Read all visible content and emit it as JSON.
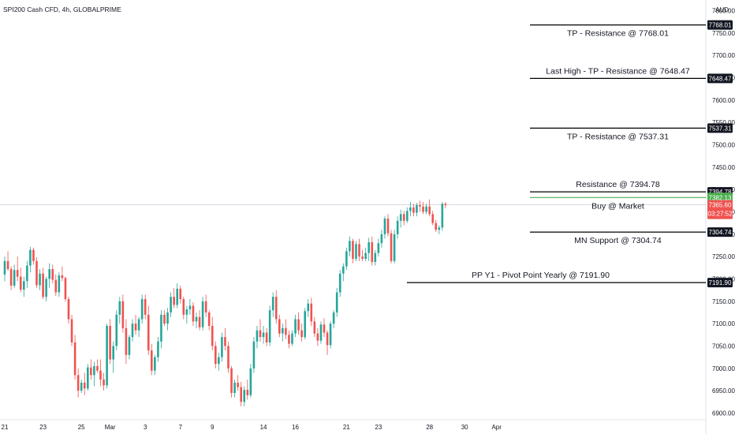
{
  "chart_data": {
    "type": "candlestick",
    "title": "SPI200 Cash CFD, 4h, GLOBALPRIME",
    "currency": "AUD",
    "ylim": [
      6885,
      7815
    ],
    "y_ticks": [
      7800,
      7750,
      7700,
      7650,
      7600,
      7550,
      7500,
      7450,
      7400,
      7350,
      7300,
      7250,
      7200,
      7150,
      7100,
      7050,
      7000,
      6950,
      6900
    ],
    "y_tick_labels": [
      "7800.00",
      "7750.00",
      "7700.00",
      "7650.00",
      "7600.00",
      "7550.00",
      "7500.00",
      "7450.00",
      "7400.00",
      "7350.00",
      "7300.00",
      "7250.00",
      "7200.00",
      "7150.00",
      "7100.00",
      "7050.00",
      "7000.00",
      "6950.00",
      "6900.00"
    ],
    "x_ticks": [
      {
        "label": "21",
        "index": 0
      },
      {
        "label": "23",
        "index": 12
      },
      {
        "label": "25",
        "index": 24
      },
      {
        "label": "Mar",
        "index": 33
      },
      {
        "label": "3",
        "index": 44
      },
      {
        "label": "7",
        "index": 55
      },
      {
        "label": "9",
        "index": 65
      },
      {
        "label": "14",
        "index": 81
      },
      {
        "label": "16",
        "index": 91
      },
      {
        "label": "21",
        "index": 107
      },
      {
        "label": "23",
        "index": 117
      },
      {
        "label": "28",
        "index": 133
      },
      {
        "label": "30",
        "index": 144
      },
      {
        "label": "Apr",
        "index": 154
      },
      {
        "label": "",
        "index": 166
      }
    ],
    "candles": [
      [
        7210,
        7250,
        7195,
        7240
      ],
      [
        7240,
        7262,
        7218,
        7222
      ],
      [
        7222,
        7228,
        7175,
        7185
      ],
      [
        7185,
        7232,
        7180,
        7220
      ],
      [
        7220,
        7250,
        7195,
        7205
      ],
      [
        7205,
        7225,
        7170,
        7176
      ],
      [
        7176,
        7205,
        7160,
        7195
      ],
      [
        7195,
        7240,
        7180,
        7230
      ],
      [
        7230,
        7272,
        7215,
        7265
      ],
      [
        7265,
        7270,
        7232,
        7240
      ],
      [
        7240,
        7248,
        7180,
        7186
      ],
      [
        7186,
        7222,
        7175,
        7212
      ],
      [
        7212,
        7225,
        7155,
        7160
      ],
      [
        7160,
        7205,
        7150,
        7200
      ],
      [
        7200,
        7235,
        7180,
        7222
      ],
      [
        7222,
        7232,
        7190,
        7198
      ],
      [
        7198,
        7210,
        7162,
        7170
      ],
      [
        7170,
        7215,
        7160,
        7208
      ],
      [
        7208,
        7228,
        7195,
        7202
      ],
      [
        7202,
        7205,
        7150,
        7155
      ],
      [
        7155,
        7160,
        7100,
        7110
      ],
      [
        7110,
        7120,
        7050,
        7058
      ],
      [
        7058,
        7075,
        6975,
        6985
      ],
      [
        6985,
        7000,
        6935,
        6950
      ],
      [
        6950,
        6975,
        6945,
        6968
      ],
      [
        6968,
        6990,
        6940,
        6955
      ],
      [
        6955,
        7010,
        6950,
        7002
      ],
      [
        7002,
        7020,
        6975,
        6985
      ],
      [
        6985,
        7015,
        6960,
        7005
      ],
      [
        7005,
        7020,
        6990,
        6995
      ],
      [
        6995,
        7020,
        6960,
        6975
      ],
      [
        6975,
        6990,
        6950,
        6962
      ],
      [
        6962,
        7100,
        6955,
        7095
      ],
      [
        7095,
        7110,
        7010,
        7020
      ],
      [
        7020,
        7060,
        6990,
        7050
      ],
      [
        7050,
        7130,
        7040,
        7120
      ],
      [
        7120,
        7160,
        7100,
        7150
      ],
      [
        7150,
        7165,
        7080,
        7090
      ],
      [
        7090,
        7110,
        7010,
        7030
      ],
      [
        7030,
        7075,
        7020,
        7070
      ],
      [
        7070,
        7110,
        7060,
        7100
      ],
      [
        7100,
        7120,
        7075,
        7085
      ],
      [
        7085,
        7115,
        7070,
        7110
      ],
      [
        7110,
        7165,
        7100,
        7155
      ],
      [
        7155,
        7165,
        7110,
        7120
      ],
      [
        7120,
        7140,
        7030,
        7040
      ],
      [
        7040,
        7055,
        6985,
        6995
      ],
      [
        6995,
        7030,
        6985,
        7025
      ],
      [
        7025,
        7070,
        7015,
        7060
      ],
      [
        7060,
        7130,
        7045,
        7120
      ],
      [
        7120,
        7130,
        7095,
        7100
      ],
      [
        7100,
        7135,
        7085,
        7125
      ],
      [
        7125,
        7170,
        7115,
        7160
      ],
      [
        7160,
        7180,
        7135,
        7142
      ],
      [
        7142,
        7190,
        7135,
        7178
      ],
      [
        7178,
        7185,
        7145,
        7155
      ],
      [
        7155,
        7160,
        7110,
        7120
      ],
      [
        7120,
        7140,
        7100,
        7132
      ],
      [
        7132,
        7155,
        7120,
        7140
      ],
      [
        7140,
        7148,
        7095,
        7105
      ],
      [
        7105,
        7125,
        7090,
        7115
      ],
      [
        7115,
        7130,
        7085,
        7092
      ],
      [
        7092,
        7160,
        7085,
        7150
      ],
      [
        7150,
        7165,
        7115,
        7125
      ],
      [
        7125,
        7130,
        7085,
        7095
      ],
      [
        7095,
        7115,
        7040,
        7050
      ],
      [
        7050,
        7060,
        7000,
        7010
      ],
      [
        7010,
        7035,
        6995,
        7025
      ],
      [
        7025,
        7080,
        7015,
        7070
      ],
      [
        7070,
        7090,
        7040,
        7050
      ],
      [
        7050,
        7060,
        6990,
        7000
      ],
      [
        7000,
        7005,
        6935,
        6945
      ],
      [
        6945,
        6975,
        6935,
        6968
      ],
      [
        6968,
        6985,
        6950,
        6958
      ],
      [
        6958,
        6970,
        6915,
        6925
      ],
      [
        6925,
        6960,
        6915,
        6952
      ],
      [
        6952,
        6975,
        6930,
        6940
      ],
      [
        6940,
        7010,
        6935,
        7000
      ],
      [
        7000,
        7070,
        6990,
        7060
      ],
      [
        7060,
        7095,
        7045,
        7085
      ],
      [
        7085,
        7110,
        7060,
        7070
      ],
      [
        7070,
        7095,
        7055,
        7080
      ],
      [
        7080,
        7090,
        7050,
        7058
      ],
      [
        7058,
        7140,
        7050,
        7130
      ],
      [
        7130,
        7170,
        7115,
        7160
      ],
      [
        7160,
        7175,
        7100,
        7110
      ],
      [
        7110,
        7120,
        7070,
        7078
      ],
      [
        7078,
        7100,
        7060,
        7090
      ],
      [
        7090,
        7110,
        7065,
        7075
      ],
      [
        7075,
        7085,
        7045,
        7055
      ],
      [
        7055,
        7085,
        7050,
        7078
      ],
      [
        7078,
        7120,
        7070,
        7110
      ],
      [
        7110,
        7125,
        7075,
        7085
      ],
      [
        7085,
        7100,
        7060,
        7070
      ],
      [
        7070,
        7135,
        7065,
        7128
      ],
      [
        7128,
        7155,
        7115,
        7145
      ],
      [
        7145,
        7158,
        7095,
        7105
      ],
      [
        7105,
        7115,
        7070,
        7078
      ],
      [
        7078,
        7090,
        7050,
        7062
      ],
      [
        7062,
        7105,
        7055,
        7098
      ],
      [
        7098,
        7112,
        7070,
        7080
      ],
      [
        7080,
        7085,
        7030,
        7052
      ],
      [
        7052,
        7105,
        7045,
        7100
      ],
      [
        7100,
        7130,
        7090,
        7125
      ],
      [
        7125,
        7180,
        7115,
        7170
      ],
      [
        7170,
        7220,
        7160,
        7212
      ],
      [
        7212,
        7235,
        7195,
        7228
      ],
      [
        7228,
        7270,
        7220,
        7262
      ],
      [
        7262,
        7295,
        7250,
        7285
      ],
      [
        7285,
        7290,
        7235,
        7245
      ],
      [
        7245,
        7285,
        7240,
        7278
      ],
      [
        7278,
        7290,
        7240,
        7250
      ],
      [
        7250,
        7265,
        7240,
        7245
      ],
      [
        7245,
        7270,
        7240,
        7258
      ],
      [
        7258,
        7292,
        7240,
        7282
      ],
      [
        7282,
        7295,
        7230,
        7238
      ],
      [
        7238,
        7265,
        7230,
        7258
      ],
      [
        7258,
        7290,
        7250,
        7280
      ],
      [
        7280,
        7310,
        7270,
        7300
      ],
      [
        7300,
        7340,
        7290,
        7335
      ],
      [
        7335,
        7345,
        7295,
        7302
      ],
      [
        7302,
        7310,
        7235,
        7240
      ],
      [
        7240,
        7310,
        7235,
        7300
      ],
      [
        7300,
        7340,
        7290,
        7330
      ],
      [
        7330,
        7355,
        7315,
        7345
      ],
      [
        7345,
        7352,
        7320,
        7330
      ],
      [
        7330,
        7360,
        7325,
        7352
      ],
      [
        7352,
        7372,
        7340,
        7360
      ],
      [
        7360,
        7368,
        7340,
        7348
      ],
      [
        7348,
        7370,
        7340,
        7365
      ],
      [
        7365,
        7375,
        7350,
        7362
      ],
      [
        7362,
        7372,
        7345,
        7350
      ],
      [
        7350,
        7368,
        7345,
        7362
      ],
      [
        7362,
        7378,
        7340,
        7345
      ],
      [
        7345,
        7352,
        7320,
        7325
      ],
      [
        7325,
        7332,
        7305,
        7310
      ],
      [
        7310,
        7320,
        7300,
        7315
      ],
      [
        7315,
        7372,
        7308,
        7368
      ],
      [
        7368,
        7372,
        7358,
        7365
      ]
    ],
    "horizontal_levels": [
      {
        "label": "TP - Resistance @ 7768.01",
        "price": 7768.01,
        "tag": "7768.01",
        "color": "#000000"
      },
      {
        "label": "Last High - TP - Resistance @ 7648.47",
        "price": 7648.47,
        "tag": "7648.47",
        "color": "#000000"
      },
      {
        "label": "TP - Resistance @ 7537.31",
        "price": 7537.31,
        "tag": "7537.31",
        "color": "#000000"
      },
      {
        "label": "Resistance @ 7394.78",
        "price": 7394.78,
        "tag": "7394.78",
        "color": "#000000"
      },
      {
        "label": "Buy @ Market",
        "price": 7382.13,
        "tag": "7382.13",
        "color": "#4caf50"
      },
      {
        "label": "MN Support @ 7304.74",
        "price": 7304.74,
        "tag": "7304.74",
        "color": "#000000"
      },
      {
        "label": "PP Y1 - Pivot Point Yearly @ 7191.90",
        "price": 7191.9,
        "tag": "7191.90",
        "color": "#000000"
      }
    ],
    "last_price": {
      "value": "7365.60",
      "countdown": "03:27:52",
      "color": "#ef5350"
    },
    "colors": {
      "up": "#26a69a",
      "down": "#ef5350",
      "text": "#131722",
      "grid_line": "#e0e3eb"
    }
  }
}
